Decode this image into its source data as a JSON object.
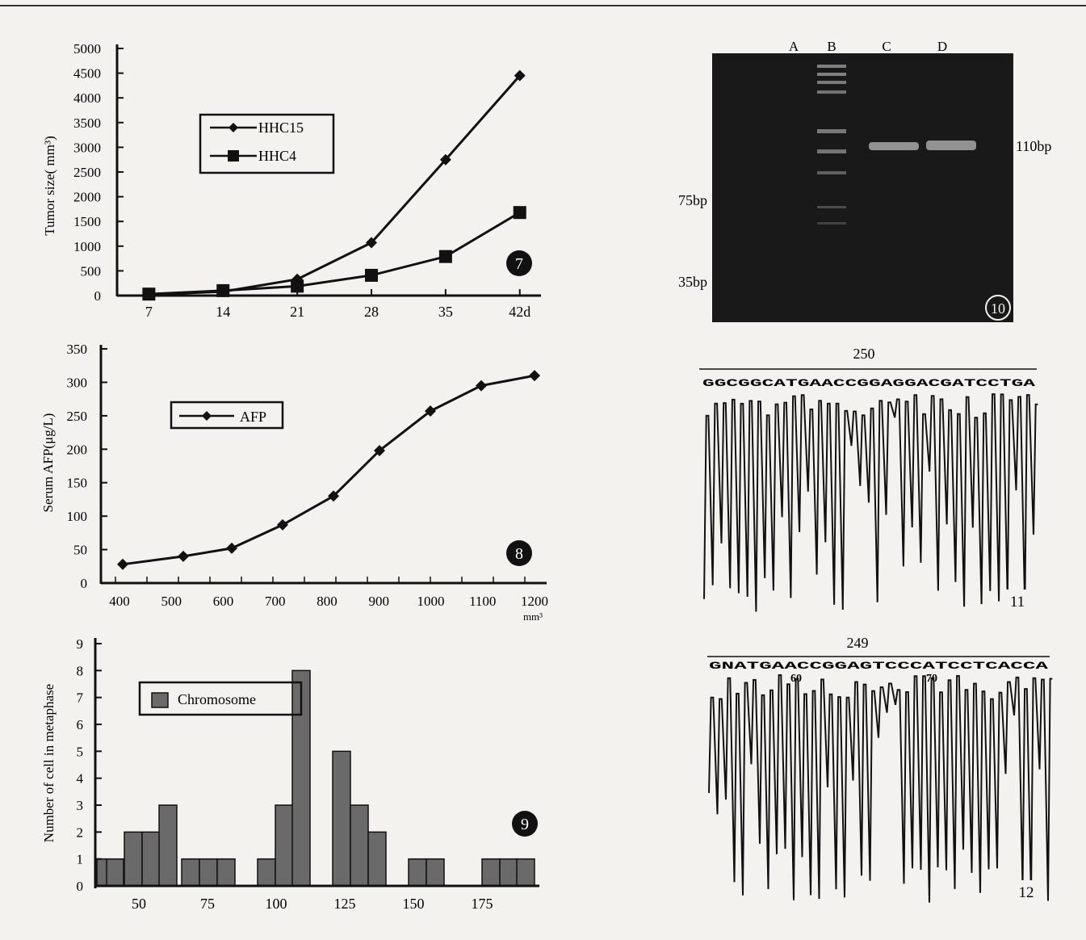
{
  "chart_data": [
    {
      "type": "line",
      "panel": "7",
      "xlabel": "",
      "ylabel": "Tumor size( mm³)",
      "x_tick_labels": [
        "7",
        "14",
        "21",
        "28",
        "35",
        "42d"
      ],
      "x": [
        7,
        14,
        21,
        28,
        35,
        42
      ],
      "xlim": [
        4,
        44
      ],
      "ylim": [
        0,
        5000
      ],
      "y_ticks": [
        0,
        500,
        1000,
        1500,
        2000,
        2500,
        3000,
        3500,
        4000,
        4500,
        5000
      ],
      "legend_position": "upper-left",
      "grid": false,
      "series": [
        {
          "name": "HHC15",
          "marker": "diamond",
          "values": [
            20,
            80,
            330,
            1070,
            2750,
            4450
          ]
        },
        {
          "name": "HHC4",
          "marker": "square",
          "values": [
            30,
            100,
            190,
            410,
            790,
            1680
          ]
        }
      ]
    },
    {
      "type": "line",
      "panel": "8",
      "xlabel": "mm³",
      "ylabel": "Serum AFP(μg/L)",
      "x": [
        415,
        540,
        640,
        745,
        850,
        945,
        1050,
        1155,
        1265
      ],
      "xlim": [
        370,
        1290
      ],
      "x_ticks": [
        400,
        500,
        600,
        700,
        800,
        900,
        1000,
        1100,
        1200
      ],
      "ylim": [
        0,
        350
      ],
      "y_ticks": [
        0,
        50,
        100,
        150,
        200,
        250,
        300,
        350
      ],
      "legend_position": "upper-left",
      "grid": false,
      "series": [
        {
          "name": "AFP",
          "marker": "diamond",
          "values": [
            28,
            40,
            52,
            87,
            130,
            198,
            257,
            295,
            310
          ]
        }
      ]
    },
    {
      "type": "bar",
      "panel": "9",
      "xlabel": "",
      "ylabel": "Number of cell in metaphase",
      "x": [
        40,
        45,
        50,
        55,
        65,
        70,
        75,
        80,
        90,
        95,
        100,
        105,
        115,
        120,
        125,
        130,
        145,
        150,
        165,
        170,
        175
      ],
      "values": [
        1,
        2,
        2,
        3,
        1,
        1,
        1,
        1,
        3,
        8,
        5,
        3,
        2,
        1,
        1,
        1,
        1,
        1,
        1,
        1,
        1
      ],
      "x_ticks": [
        50,
        75,
        100,
        125,
        150,
        175
      ],
      "ylim": [
        0,
        9
      ],
      "y_ticks": [
        0,
        1,
        2,
        3,
        4,
        5,
        6,
        7,
        8,
        9
      ],
      "legend_position": "upper-left",
      "series": [
        {
          "name": "Chromosome",
          "color": "#6a6a6a"
        }
      ]
    }
  ],
  "gel": {
    "panel": "10",
    "lanes": [
      "A",
      "B",
      "C",
      "D"
    ],
    "band_labels_left": [
      "75bp",
      "35bp"
    ],
    "band_label_right": "110bp"
  },
  "seq1": {
    "panel": "11",
    "position": "250",
    "bases": "GGCGGCATGAACCGGAGGACGATCCTGA"
  },
  "seq2": {
    "panel": "12",
    "position": "249",
    "bases": "GNATGAACCGGAGTCCCATCCTCACCA",
    "markers": [
      "60",
      "70"
    ]
  },
  "colors": {
    "ink": "#111111",
    "bar_fill": "#6a6a6a",
    "gel_bg": "#191919",
    "paper": "#f4f2ee"
  }
}
